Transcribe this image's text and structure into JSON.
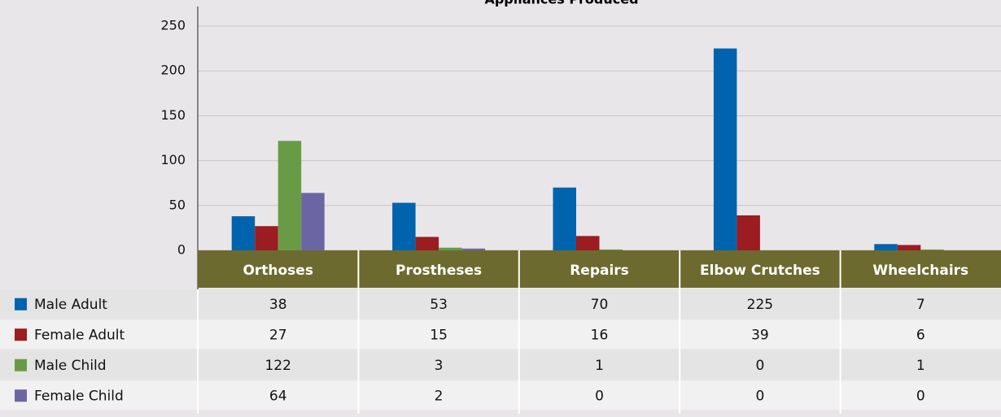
{
  "chart_data": {
    "type": "bar",
    "title": "Appliances Produced",
    "categories": [
      "Orthoses",
      "Prostheses",
      "Repairs",
      "Elbow Crutches",
      "Wheelchairs"
    ],
    "series": [
      {
        "name": "Male Adult",
        "color": "#0063ad",
        "values": [
          38,
          53,
          70,
          225,
          7
        ]
      },
      {
        "name": "Female Adult",
        "color": "#9b1c21",
        "values": [
          27,
          15,
          16,
          39,
          6
        ]
      },
      {
        "name": "Male Child",
        "color": "#699b47",
        "values": [
          122,
          3,
          1,
          0,
          1
        ]
      },
      {
        "name": "Female Child",
        "color": "#6b66a3",
        "values": [
          64,
          2,
          0,
          0,
          0
        ]
      }
    ],
    "ylim": [
      0,
      250
    ],
    "yticks": [
      0,
      50,
      100,
      150,
      200,
      250
    ],
    "grid": true
  }
}
